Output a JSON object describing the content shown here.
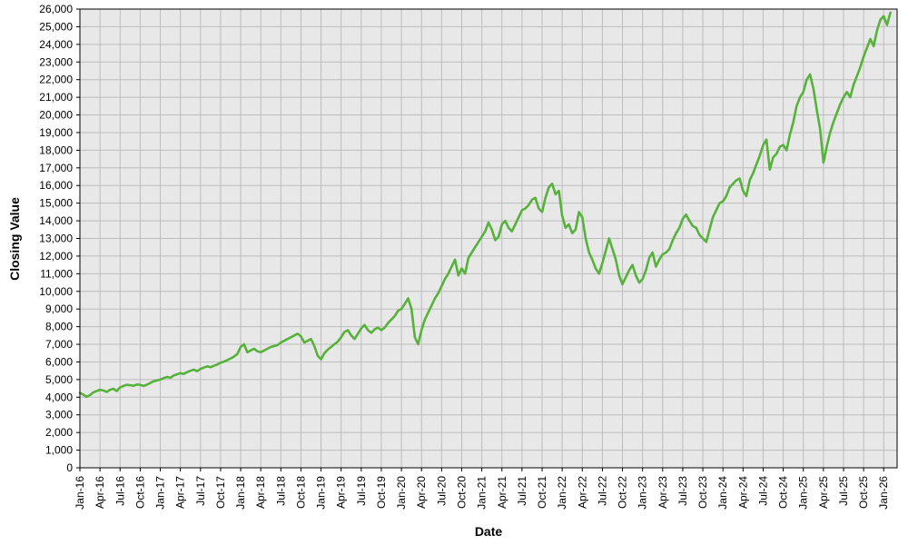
{
  "chart_data": {
    "type": "line",
    "title": "",
    "xlabel": "Date",
    "ylabel": "Closing Value",
    "xlim": [
      0,
      122
    ],
    "ylim": [
      0,
      26000
    ],
    "ytick_interval": 1000,
    "xtick_interval_months": 3,
    "grid": true,
    "legend_position": "none",
    "plot_bg": "#e8e8e8",
    "grid_color": "#bcbcbc",
    "border_color": "#000000",
    "line_color": "#56b23a",
    "xtick_labels": [
      "Jan-16",
      "Apr-16",
      "Jul-16",
      "Oct-16",
      "Jan-17",
      "Apr-17",
      "Jul-17",
      "Oct-17",
      "Jan-18",
      "Apr-18",
      "Jul-18",
      "Oct-18",
      "Jan-19",
      "Apr-19",
      "Jul-19",
      "Oct-19",
      "Jan-20",
      "Apr-20",
      "Jul-20",
      "Oct-20",
      "Jan-21",
      "Apr-21",
      "Jul-21",
      "Oct-21",
      "Jan-22",
      "Apr-22",
      "Jul-22",
      "Oct-22",
      "Jan-23",
      "Apr-23",
      "Jul-23",
      "Oct-23",
      "Jan-24",
      "Apr-24",
      "Jul-24",
      "Oct-24",
      "Jan-25",
      "Apr-25",
      "Jul-25",
      "Oct-25",
      "Jan-26"
    ],
    "series": [
      {
        "name": "Closing Value",
        "x_start": 0,
        "x_step": 0.5,
        "values": [
          4250,
          4150,
          4020,
          4120,
          4280,
          4350,
          4420,
          4380,
          4300,
          4420,
          4480,
          4350,
          4560,
          4640,
          4700,
          4680,
          4650,
          4720,
          4700,
          4640,
          4710,
          4810,
          4900,
          4950,
          5000,
          5080,
          5150,
          5100,
          5230,
          5300,
          5370,
          5320,
          5420,
          5500,
          5560,
          5480,
          5600,
          5680,
          5750,
          5700,
          5780,
          5850,
          5950,
          6020,
          6100,
          6200,
          6300,
          6450,
          6850,
          7000,
          6550,
          6650,
          6750,
          6600,
          6550,
          6650,
          6750,
          6850,
          6900,
          6950,
          7100,
          7200,
          7300,
          7400,
          7500,
          7600,
          7450,
          7100,
          7200,
          7300,
          6900,
          6350,
          6150,
          6500,
          6700,
          6850,
          7000,
          7150,
          7400,
          7700,
          7800,
          7500,
          7300,
          7600,
          7900,
          8100,
          7800,
          7650,
          7850,
          7950,
          7800,
          7950,
          8200,
          8400,
          8600,
          8900,
          9000,
          9300,
          9600,
          9000,
          7400,
          7000,
          7800,
          8400,
          8800,
          9200,
          9600,
          9900,
          10300,
          10700,
          11000,
          11400,
          11800,
          10900,
          11300,
          11000,
          11900,
          12200,
          12500,
          12800,
          13100,
          13400,
          13900,
          13500,
          12900,
          13100,
          13800,
          14000,
          13600,
          13400,
          13800,
          14200,
          14600,
          14700,
          14900,
          15200,
          15300,
          14700,
          14500,
          15300,
          15900,
          16100,
          15500,
          15700,
          14300,
          13600,
          13800,
          13300,
          13500,
          14500,
          14200,
          13000,
          12200,
          11800,
          11300,
          11000,
          11600,
          12300,
          13000,
          12400,
          11800,
          10900,
          10400,
          10800,
          11200,
          11500,
          10900,
          10500,
          10700,
          11200,
          11900,
          12200,
          11400,
          11800,
          12100,
          12200,
          12400,
          12900,
          13300,
          13600,
          14100,
          14350,
          14000,
          13700,
          13600,
          13200,
          13000,
          12800,
          13500,
          14200,
          14600,
          15000,
          15100,
          15400,
          15900,
          16100,
          16300,
          16400,
          15700,
          15400,
          16300,
          16700,
          17200,
          17700,
          18300,
          18600,
          16900,
          17600,
          17800,
          18200,
          18300,
          18000,
          18900,
          19600,
          20500,
          21000,
          21300,
          22000,
          22300,
          21500,
          20300,
          19200,
          17300,
          18200,
          19000,
          19600,
          20100,
          20600,
          21000,
          21300,
          21000,
          21700,
          22200,
          22700,
          23300,
          23800,
          24300,
          23900,
          24800,
          25400,
          25600,
          25100,
          25800
        ]
      }
    ]
  }
}
